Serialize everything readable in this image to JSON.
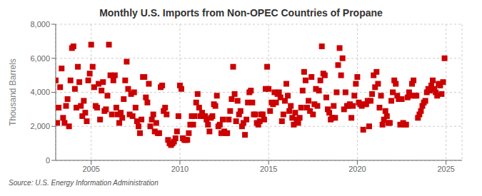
{
  "chart_data": {
    "type": "scatter",
    "title": "Monthly U.S. Imports from Non-OPEC Countries of Propane",
    "ylabel": "Thousand Barrels",
    "annotations": [
      "Source: U.S. Energy Information Administration"
    ],
    "color": "#cc0000",
    "marker": "square",
    "grid": true,
    "xlim": [
      2003.0,
      2025.9
    ],
    "ylim": [
      0,
      8000
    ],
    "xticks": [
      2005,
      2010,
      2015,
      2020,
      2025
    ],
    "yticks": [
      0,
      {
        "value": 2000,
        "label": "2,000"
      },
      {
        "value": 4000,
        "label": "4,000"
      },
      {
        "value": 6000,
        "label": "6,000"
      },
      {
        "value": 8000,
        "label": "8,000"
      }
    ],
    "x": [
      2003.0,
      2003.083,
      2003.167,
      2003.25,
      2003.333,
      2003.417,
      2003.5,
      2003.583,
      2003.667,
      2003.75,
      2003.833,
      2003.917,
      2004.0,
      2004.083,
      2004.167,
      2004.25,
      2004.333,
      2004.417,
      2004.5,
      2004.583,
      2004.667,
      2004.75,
      2004.833,
      2004.917,
      2005.0,
      2005.083,
      2005.167,
      2005.25,
      2005.333,
      2005.417,
      2005.5,
      2005.583,
      2005.667,
      2005.75,
      2005.833,
      2005.917,
      2006.0,
      2006.083,
      2006.167,
      2006.25,
      2006.333,
      2006.417,
      2006.5,
      2006.583,
      2006.667,
      2006.75,
      2006.833,
      2006.917,
      2007.0,
      2007.083,
      2007.167,
      2007.25,
      2007.333,
      2007.417,
      2007.5,
      2007.583,
      2007.667,
      2007.75,
      2007.833,
      2007.917,
      2008.0,
      2008.083,
      2008.167,
      2008.25,
      2008.333,
      2008.417,
      2008.5,
      2008.583,
      2008.667,
      2008.75,
      2008.833,
      2008.917,
      2009.0,
      2009.083,
      2009.167,
      2009.25,
      2009.333,
      2009.417,
      2009.5,
      2009.583,
      2009.667,
      2009.75,
      2009.833,
      2009.917,
      2010.0,
      2010.083,
      2010.167,
      2010.25,
      2010.333,
      2010.417,
      2010.5,
      2010.583,
      2010.667,
      2010.75,
      2010.833,
      2010.917,
      2011.0,
      2011.083,
      2011.167,
      2011.25,
      2011.333,
      2011.417,
      2011.5,
      2011.583,
      2011.667,
      2011.75,
      2011.833,
      2011.917,
      2012.0,
      2012.083,
      2012.167,
      2012.25,
      2012.333,
      2012.417,
      2012.5,
      2012.583,
      2012.667,
      2012.75,
      2012.833,
      2012.917,
      2013.0,
      2013.083,
      2013.167,
      2013.25,
      2013.333,
      2013.417,
      2013.5,
      2013.583,
      2013.667,
      2013.75,
      2013.833,
      2013.917,
      2014.0,
      2014.083,
      2014.167,
      2014.25,
      2014.333,
      2014.417,
      2014.5,
      2014.583,
      2014.667,
      2014.75,
      2014.833,
      2014.917,
      2015.0,
      2015.083,
      2015.167,
      2015.25,
      2015.333,
      2015.417,
      2015.5,
      2015.583,
      2015.667,
      2015.75,
      2015.833,
      2015.917,
      2016.0,
      2016.083,
      2016.167,
      2016.25,
      2016.333,
      2016.417,
      2016.5,
      2016.583,
      2016.667,
      2016.75,
      2016.833,
      2016.917,
      2017.0,
      2017.083,
      2017.167,
      2017.25,
      2017.333,
      2017.417,
      2017.5,
      2017.583,
      2017.667,
      2017.75,
      2017.833,
      2017.917,
      2018.0,
      2018.083,
      2018.167,
      2018.25,
      2018.333,
      2018.417,
      2018.5,
      2018.583,
      2018.667,
      2018.75,
      2018.833,
      2018.917,
      2019.0,
      2019.083,
      2019.167,
      2019.25,
      2019.333,
      2019.417,
      2019.5,
      2019.583,
      2019.667,
      2019.75,
      2019.833,
      2019.917,
      2020.0,
      2020.083,
      2020.167,
      2020.25,
      2020.333,
      2020.417,
      2020.5,
      2020.583,
      2020.667,
      2020.75,
      2020.833,
      2020.917,
      2021.0,
      2021.083,
      2021.167,
      2021.25,
      2021.333,
      2021.417,
      2021.5,
      2021.583,
      2021.667,
      2021.75,
      2021.833,
      2021.917,
      2022.0,
      2022.083,
      2022.167,
      2022.25,
      2022.333,
      2022.417,
      2022.5,
      2022.583,
      2022.667,
      2022.75,
      2022.833,
      2022.917,
      2023.0,
      2023.083,
      2023.167,
      2023.25,
      2023.333,
      2023.417,
      2023.5,
      2023.583,
      2023.667,
      2023.75,
      2023.833,
      2023.917,
      2024.0,
      2024.083,
      2024.167,
      2024.25,
      2024.333,
      2024.417,
      2024.5,
      2024.583,
      2024.667,
      2024.75,
      2024.833,
      2024.917
    ],
    "values": [
      4700,
      2200,
      3100,
      4300,
      5400,
      2500,
      2200,
      3200,
      3600,
      2000,
      4700,
      6600,
      6700,
      4200,
      3100,
      5500,
      4600,
      3200,
      2600,
      3500,
      2800,
      2300,
      4700,
      5100,
      6800,
      5500,
      4300,
      3200,
      3100,
      4500,
      2400,
      4100,
      4600,
      2900,
      3000,
      3800,
      6800,
      5000,
      2700,
      4700,
      5000,
      3100,
      2700,
      2200,
      2800,
      2500,
      3600,
      4700,
      5800,
      4200,
      2700,
      3900,
      2600,
      4000,
      3100,
      2300,
      2000,
      1600,
      2400,
      4900,
      4900,
      3700,
      3400,
      4500,
      2000,
      2400,
      2700,
      1700,
      2200,
      1600,
      1600,
      4300,
      4400,
      2900,
      3100,
      2700,
      1200,
      1000,
      900,
      1000,
      1100,
      1300,
      1700,
      2600,
      4400,
      4200,
      1300,
      1200,
      1200,
      1200,
      1600,
      2100,
      2600,
      2100,
      2600,
      3400,
      3900,
      3100,
      2600,
      2800,
      2600,
      2600,
      2400,
      2100,
      1700,
      2500,
      2600,
      3300,
      3200,
      3800,
      2000,
      2100,
      1600,
      2400,
      1700,
      1600,
      1600,
      2400,
      2900,
      3600,
      5500,
      3900,
      2300,
      3500,
      2700,
      2900,
      2000,
      2200,
      1500,
      2400,
      3400,
      4000,
      4100,
      3400,
      2700,
      2700,
      2200,
      2100,
      2300,
      2700,
      2700,
      2400,
      4200,
      5500,
      4200,
      2900,
      3400,
      3300,
      4000,
      3400,
      3900,
      4000,
      3700,
      2300,
      2700,
      3500,
      4500,
      3800,
      2900,
      3200,
      2500,
      2100,
      2800,
      2400,
      2200,
      2500,
      3100,
      4100,
      5200,
      4700,
      3100,
      3500,
      2900,
      4900,
      2700,
      3300,
      4200,
      3200,
      4100,
      4700,
      6700,
      5100,
      5000,
      3700,
      3000,
      2800,
      2400,
      2500,
      3200,
      2500,
      4000,
      5600,
      6600,
      5000,
      6000,
      3000,
      4000,
      3200,
      3200,
      3300,
      2500,
      3200,
      3800,
      4500,
      4900,
      3400,
      3300,
      3200,
      1800,
      3300,
      3300,
      3500,
      2000,
      3500,
      3900,
      5000,
      4300,
      5200,
      4500,
      3100,
      3800,
      2100,
      2400,
      2900,
      2600,
      2200,
      2200,
      3500,
      4000,
      4700,
      4500,
      3800,
      3600,
      2100,
      3600,
      2200,
      2100,
      2100,
      3700,
      4000,
      3800,
      4500,
      4700,
      3800,
      3800,
      2500,
      2700,
      2900,
      3200,
      3400,
      3500,
      4000,
      4200,
      4100,
      4400,
      4700,
      4200,
      4000,
      3800,
      4500,
      4400,
      3900,
      4600,
      6000
    ]
  }
}
